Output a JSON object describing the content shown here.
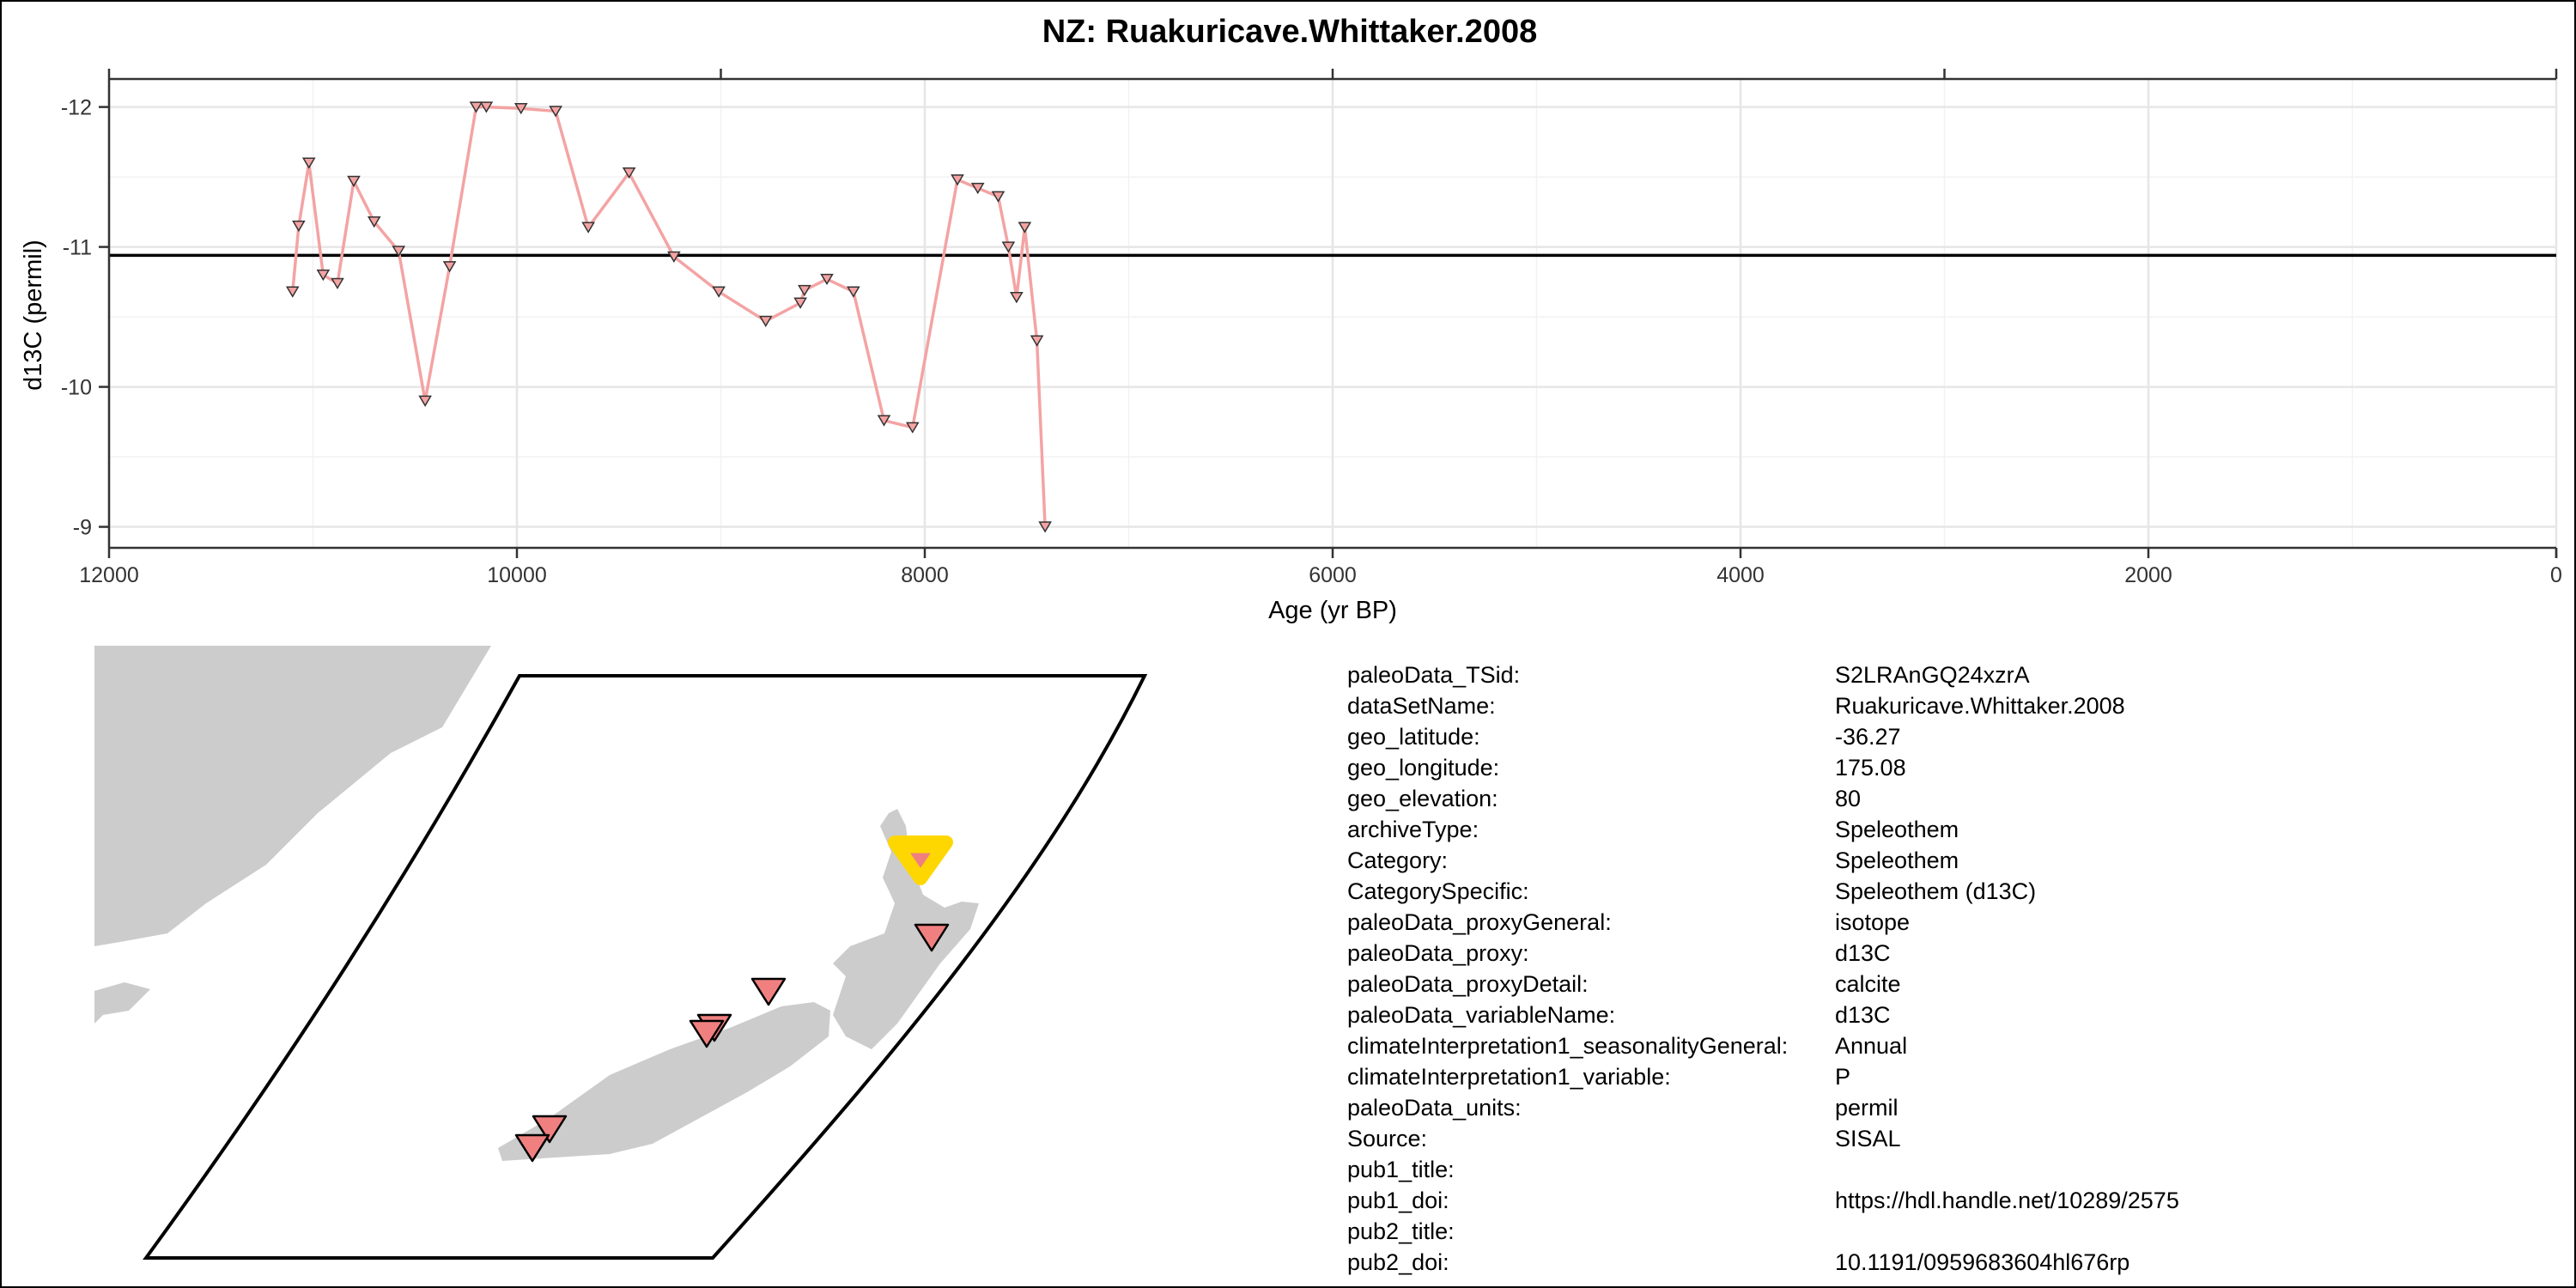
{
  "chart_data": {
    "type": "line",
    "title": "NZ: Ruakuricave.Whittaker.2008",
    "xlabel": "Age (yr BP)",
    "ylabel": "d13C (permil)",
    "xlim": [
      12000,
      0
    ],
    "ylim": [
      -12.2,
      -8.85
    ],
    "x_reversed": true,
    "y_reversed": true,
    "x_ticks": [
      12000,
      10000,
      8000,
      6000,
      4000,
      2000,
      0
    ],
    "y_ticks": [
      -12,
      -11,
      -10,
      -9
    ],
    "grid": true,
    "marker": "downward-triangle",
    "series": [
      {
        "color": "#f4a3a3",
        "x": [
          11100,
          11070,
          11020,
          10950,
          10880,
          10800,
          10700,
          10580,
          10450,
          10330,
          10200,
          10150,
          9980,
          9810,
          9650,
          9450,
          9230,
          9010,
          8780,
          8610,
          8590,
          8480,
          8350,
          8200,
          8060,
          7840,
          7740,
          7640,
          7590,
          7550,
          7510,
          7450,
          7410
        ],
        "y": [
          -10.68,
          -11.15,
          -11.6,
          -10.8,
          -10.74,
          -11.47,
          -11.18,
          -10.97,
          -9.9,
          -10.86,
          -12.0,
          -12.0,
          -11.99,
          -11.97,
          -11.14,
          -11.53,
          -10.93,
          -10.68,
          -10.47,
          -10.6,
          -10.69,
          -10.77,
          -10.68,
          -9.76,
          -9.71,
          -11.48,
          -11.42,
          -11.36,
          -11.0,
          -10.64,
          -11.14,
          -10.33,
          -9.0
        ]
      }
    ],
    "hline": {
      "y": -10.94,
      "color": "#000000"
    }
  },
  "map": {
    "land_color": "#cccccc",
    "site_color": "#f08080",
    "highlight_color": "#ffd700",
    "border_color": "#000000"
  },
  "metadata": [
    {
      "key": "paleoData_TSid:",
      "value": "S2LRAnGQ24xzrA"
    },
    {
      "key": "dataSetName:",
      "value": "Ruakuricave.Whittaker.2008"
    },
    {
      "key": "geo_latitude:",
      "value": "-36.27"
    },
    {
      "key": "geo_longitude:",
      "value": "175.08"
    },
    {
      "key": "geo_elevation:",
      "value": "80"
    },
    {
      "key": "archiveType:",
      "value": "Speleothem"
    },
    {
      "key": "Category:",
      "value": "Speleothem"
    },
    {
      "key": "CategorySpecific:",
      "value": "Speleothem (d13C)"
    },
    {
      "key": "paleoData_proxyGeneral:",
      "value": "isotope"
    },
    {
      "key": "paleoData_proxy:",
      "value": "d13C"
    },
    {
      "key": "paleoData_proxyDetail:",
      "value": "calcite"
    },
    {
      "key": "paleoData_variableName:",
      "value": "d13C"
    },
    {
      "key": "climateInterpretation1_seasonalityGeneral:",
      "value": "Annual"
    },
    {
      "key": "climateInterpretation1_variable:",
      "value": "P"
    },
    {
      "key": "paleoData_units:",
      "value": "permil"
    },
    {
      "key": "Source:",
      "value": "SISAL"
    },
    {
      "key": "pub1_title:",
      "value": ""
    },
    {
      "key": "pub1_doi:",
      "value": "https://hdl.handle.net/10289/2575"
    },
    {
      "key": "pub2_title:",
      "value": ""
    },
    {
      "key": "pub2_doi:",
      "value": "10.1191/0959683604hl676rp"
    }
  ]
}
